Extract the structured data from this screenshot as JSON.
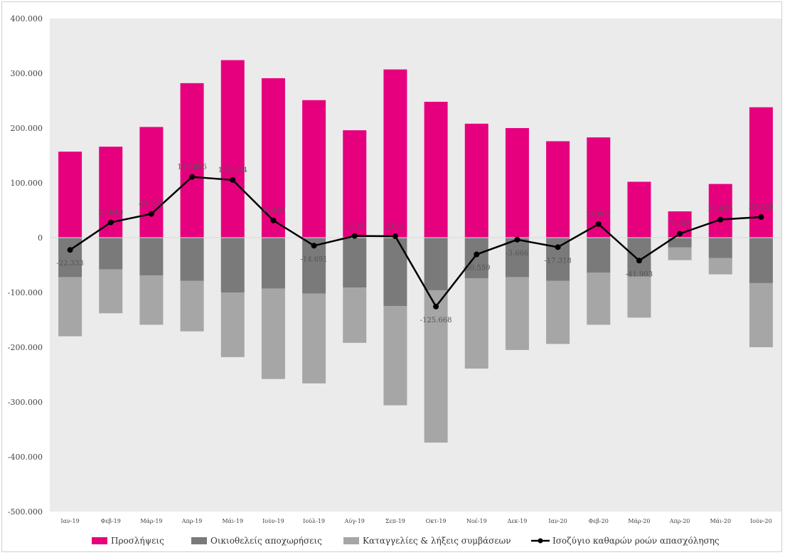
{
  "chart_data": {
    "type": "bar",
    "title": "",
    "xlabel": "",
    "ylabel": "",
    "ylim": [
      -500000,
      400000
    ],
    "yticks": [
      400000,
      300000,
      200000,
      100000,
      0,
      -100000,
      -200000,
      -300000,
      -400000,
      -500000
    ],
    "ytick_labels": [
      "400.000",
      "300.000",
      "200.000",
      "100.000",
      "0",
      "-100.000",
      "-200.000",
      "-300.000",
      "-400.000",
      "-500.000"
    ],
    "categories": [
      "Ιαν-19",
      "Φεβ-19",
      "Μάρ-19",
      "Απρ-19",
      "Μάι-19",
      "Ιούν-19",
      "Ιούλ-19",
      "Αύγ-19",
      "Σεπ-19",
      "Οκτ-19",
      "Νοέ-19",
      "Δεκ-19",
      "Ιαν-20",
      "Φεβ-20",
      "Μάρ-20",
      "Απρ-20",
      "Μάι-20",
      "Ιούν-20"
    ],
    "grid": false,
    "background": "#ebebeb",
    "legend_position": "bottom",
    "series": [
      {
        "name": "Προσλήψεις",
        "kind": "bar",
        "color": "#e6007e",
        "values": [
          157000,
          166000,
          202000,
          282000,
          324000,
          291000,
          251000,
          196000,
          307000,
          248000,
          208000,
          200000,
          176000,
          183000,
          102000,
          48000,
          98000,
          238000
        ]
      },
      {
        "name": "Οικιοθελείς αποχωρήσεις",
        "kind": "bar",
        "color": "#7a7a7a",
        "values": [
          -72000,
          -58000,
          -69000,
          -79000,
          -100000,
          -93000,
          -102000,
          -91000,
          -125000,
          -96000,
          -74000,
          -72000,
          -79000,
          -64000,
          -71000,
          -18000,
          -37000,
          -83000
        ]
      },
      {
        "name": "Καταγγελίες & λήξεις συμβάσεων",
        "kind": "bar",
        "color": "#a6a6a6",
        "values": [
          -108000,
          -80000,
          -90000,
          -92000,
          -118000,
          -165000,
          -164000,
          -101000,
          -181000,
          -278000,
          -165000,
          -133000,
          -115000,
          -95000,
          -75000,
          -23000,
          -30000,
          -117000
        ]
      },
      {
        "name": "Ισοζύγιο καθαρών ροών απασχόλησης",
        "kind": "line",
        "color": "#000000",
        "values": [
          -22333,
          27840,
          43373,
          110896,
          105284,
          31407,
          -14691,
          3111,
          2651,
          -125668,
          -30559,
          -3666,
          -17318,
          24867,
          -41903,
          7203,
          32975,
          37588
        ],
        "labels": [
          "-22.333",
          "27.840",
          "43.373",
          "110.896",
          "105.284",
          "31.407",
          "-14.691",
          "3.111",
          "2.651",
          "-125.668",
          "-30.559",
          "-3.666",
          "-17.318",
          "24.867",
          "-41.903",
          "7.203",
          "32.975",
          "37.588"
        ]
      }
    ]
  }
}
